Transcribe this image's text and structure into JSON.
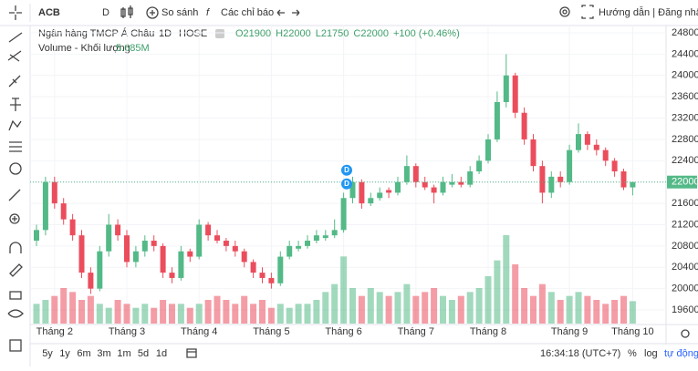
{
  "toolbar": {
    "symbol": "ACB",
    "interval": "D",
    "compare": "So sánh",
    "indicators": "Các chỉ báo",
    "help_login": "Hướng dẫn | Đăng nhập"
  },
  "chart_data": {
    "type": "candlestick",
    "title": "Ngân hàng TMCP Á Châu",
    "interval": "1D",
    "exchange": "HOSE",
    "ohlc_text": [
      "O21900",
      "H22000",
      "L21750",
      "C22000",
      "+100 (+0.46%)"
    ],
    "volume_title": "Volume - Khối lượng",
    "volume_text": "5.685M",
    "event_labels": [
      "D",
      "D"
    ],
    "categories": [
      null,
      null,
      "Tháng 2",
      null,
      null,
      null,
      null,
      null,
      null,
      null,
      "Tháng 3",
      null,
      null,
      null,
      null,
      null,
      null,
      null,
      "Tháng 4",
      null,
      null,
      null,
      null,
      null,
      null,
      null,
      "Tháng 5",
      null,
      null,
      null,
      null,
      null,
      null,
      null,
      "Tháng 6",
      null,
      null,
      null,
      null,
      null,
      null,
      null,
      "Tháng 7",
      null,
      null,
      null,
      null,
      null,
      null,
      null,
      "Tháng 8",
      null,
      null,
      null,
      null,
      null,
      null,
      null,
      null,
      "Tháng 9",
      null,
      null,
      null,
      null,
      null,
      null,
      "Tháng 10"
    ],
    "ohlc": [
      [
        20900,
        21200,
        20800,
        21100
      ],
      [
        21100,
        22100,
        21000,
        22000
      ],
      [
        22000,
        22100,
        21500,
        21600
      ],
      [
        21600,
        21700,
        21200,
        21300
      ],
      [
        21300,
        21400,
        20900,
        21000
      ],
      [
        21000,
        21100,
        20200,
        20300
      ],
      [
        20300,
        20400,
        19900,
        20000
      ],
      [
        20000,
        20800,
        19950,
        20700
      ],
      [
        20700,
        21400,
        20600,
        21200
      ],
      [
        21200,
        21300,
        20900,
        21000
      ],
      [
        21000,
        21100,
        20400,
        20500
      ],
      [
        20500,
        20800,
        20400,
        20700
      ],
      [
        20700,
        21000,
        20600,
        20900
      ],
      [
        20900,
        21000,
        20700,
        20800
      ],
      [
        20800,
        20850,
        20200,
        20300
      ],
      [
        20300,
        20400,
        20100,
        20200
      ],
      [
        20200,
        20800,
        20150,
        20700
      ],
      [
        20700,
        20750,
        20500,
        20600
      ],
      [
        20600,
        21300,
        20550,
        21200
      ],
      [
        21200,
        21250,
        20900,
        21000
      ],
      [
        21000,
        21100,
        20850,
        20900
      ],
      [
        20900,
        20950,
        20700,
        20800
      ],
      [
        20800,
        20900,
        20600,
        20700
      ],
      [
        20700,
        20750,
        20400,
        20500
      ],
      [
        20500,
        20550,
        20200,
        20300
      ],
      [
        20300,
        20400,
        20100,
        20200
      ],
      [
        20200,
        20300,
        20000,
        20100
      ],
      [
        20100,
        20700,
        20050,
        20600
      ],
      [
        20600,
        20900,
        20550,
        20800
      ],
      [
        20750,
        20900,
        20700,
        20800
      ],
      [
        20800,
        21000,
        20750,
        20900
      ],
      [
        20900,
        21100,
        20850,
        21000
      ],
      [
        20950,
        21100,
        20900,
        21000
      ],
      [
        21000,
        21300,
        20950,
        21100
      ],
      [
        21100,
        21800,
        21050,
        21700
      ],
      [
        21700,
        22100,
        21600,
        22000
      ],
      [
        22000,
        22050,
        21500,
        21600
      ],
      [
        21600,
        21800,
        21550,
        21700
      ],
      [
        21700,
        21900,
        21650,
        21800
      ],
      [
        21850,
        21900,
        21700,
        21800
      ],
      [
        21800,
        22100,
        21750,
        22000
      ],
      [
        22000,
        22500,
        21950,
        22300
      ],
      [
        22300,
        22350,
        21900,
        22000
      ],
      [
        22000,
        22100,
        21850,
        21900
      ],
      [
        21900,
        21950,
        21600,
        21800
      ],
      [
        21800,
        22100,
        21750,
        22000
      ],
      [
        21950,
        22150,
        21900,
        22000
      ],
      [
        22000,
        22100,
        21900,
        21950
      ],
      [
        21950,
        22300,
        21900,
        22200
      ],
      [
        22200,
        22500,
        22150,
        22400
      ],
      [
        22400,
        22900,
        22350,
        22800
      ],
      [
        22800,
        23700,
        22750,
        23500
      ],
      [
        23500,
        24400,
        23400,
        24000
      ],
      [
        24000,
        24050,
        23200,
        23300
      ],
      [
        23300,
        23400,
        22700,
        22800
      ],
      [
        22800,
        22900,
        22200,
        22300
      ],
      [
        22300,
        22400,
        21600,
        21800
      ],
      [
        21800,
        22200,
        21700,
        22100
      ],
      [
        22100,
        22200,
        21900,
        22000
      ],
      [
        22000,
        22700,
        21950,
        22600
      ],
      [
        22600,
        23100,
        22550,
        22900
      ],
      [
        22900,
        22950,
        22600,
        22700
      ],
      [
        22700,
        22800,
        22500,
        22600
      ],
      [
        22600,
        22650,
        22300,
        22400
      ],
      [
        22400,
        22450,
        22100,
        22200
      ],
      [
        22200,
        22250,
        21850,
        21900
      ],
      [
        21900,
        22000,
        21750,
        22000
      ]
    ],
    "volumes": [
      5,
      6,
      7,
      9,
      8,
      6,
      7,
      5,
      4,
      6,
      5,
      4,
      5,
      4,
      6,
      5,
      5,
      4,
      5,
      6,
      7,
      6,
      5,
      7,
      5,
      6,
      4,
      5,
      4,
      5,
      5,
      6,
      8,
      10,
      17,
      9,
      7,
      9,
      8,
      7,
      8,
      10,
      7,
      8,
      9,
      7,
      6,
      7,
      8,
      9,
      12,
      16,
      22.4,
      15,
      9,
      7,
      10,
      8,
      6,
      7,
      8,
      7,
      6,
      5,
      6,
      7,
      5.685
    ],
    "ylim": [
      19344,
      24937
    ],
    "yticks": [
      19600,
      20000,
      20400,
      20800,
      21200,
      21600,
      22000,
      22400,
      22800,
      23200,
      23600,
      24000,
      24400,
      24800
    ],
    "volume_lim": [
      0,
      30
    ],
    "up_color": "#53b987",
    "down_color": "#eb4d5c",
    "grid": true
  },
  "footer": {
    "ranges": [
      "5y",
      "1y",
      "6m",
      "3m",
      "1m",
      "5d",
      "1d"
    ],
    "time": "16:34:18 (UTC+7)",
    "scale_options": [
      "%",
      "log",
      "tự động"
    ]
  }
}
